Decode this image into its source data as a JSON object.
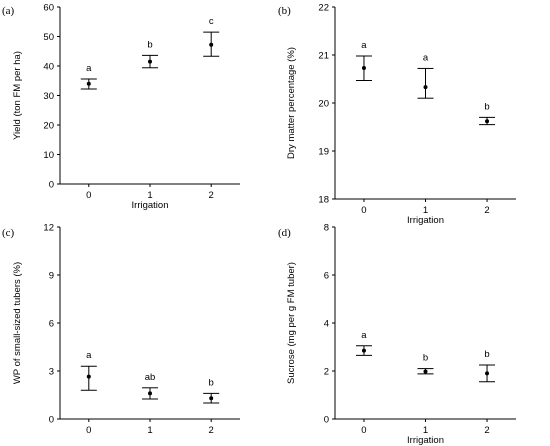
{
  "chart_data": [
    {
      "type": "scatter",
      "panel_label": "(a)",
      "categories": [
        "0",
        "1",
        "2"
      ],
      "values": [
        34,
        41.5,
        47.2
      ],
      "errors": [
        [
          32.2,
          35.6
        ],
        [
          39.4,
          43.6
        ],
        [
          43.3,
          51.5
        ]
      ],
      "letters": [
        "a",
        "b",
        "c"
      ],
      "xlabel": "Irrigation",
      "ylabel": "Yield (ton FM per ha)",
      "ylim": [
        0,
        60
      ],
      "yticks": [
        "0",
        "10",
        "20",
        "30",
        "40",
        "50",
        "60"
      ],
      "grid": false
    },
    {
      "type": "scatter",
      "panel_label": "(b)",
      "categories": [
        "0",
        "1",
        "2"
      ],
      "values": [
        20.73,
        20.33,
        19.62
      ],
      "errors": [
        [
          20.47,
          20.98
        ],
        [
          20.1,
          20.72
        ],
        [
          19.55,
          19.7
        ]
      ],
      "letters": [
        "a",
        "a",
        "b"
      ],
      "xlabel": "Irrigation",
      "ylabel": "Dry matter percentage (%)",
      "ylim": [
        18,
        22
      ],
      "yticks": [
        "18",
        "19",
        "20",
        "21",
        "22"
      ],
      "grid": false
    },
    {
      "type": "scatter",
      "panel_label": "(c)",
      "categories": [
        "0",
        "1",
        "2"
      ],
      "values": [
        2.65,
        1.6,
        1.3
      ],
      "errors": [
        [
          1.8,
          3.3
        ],
        [
          1.25,
          1.95
        ],
        [
          1.0,
          1.6
        ]
      ],
      "letters": [
        "a",
        "ab",
        "b"
      ],
      "xlabel": "",
      "ylabel": "WP of small-sized tubers (%)",
      "ylim": [
        0,
        12
      ],
      "yticks": [
        "0",
        "3",
        "6",
        "9",
        "12"
      ],
      "grid": false
    },
    {
      "type": "scatter",
      "panel_label": "(d)",
      "categories": [
        "0",
        "1",
        "2"
      ],
      "values": [
        2.85,
        1.98,
        1.9
      ],
      "errors": [
        [
          2.65,
          3.05
        ],
        [
          1.88,
          2.1
        ],
        [
          1.55,
          2.25
        ]
      ],
      "letters": [
        "a",
        "b",
        "b"
      ],
      "xlabel": "Irrigation",
      "ylabel": "Sucrose (mg per g FM tuber)",
      "ylim": [
        0,
        8
      ],
      "yticks": [
        "0",
        "2",
        "4",
        "6",
        "8"
      ],
      "grid": false
    }
  ]
}
